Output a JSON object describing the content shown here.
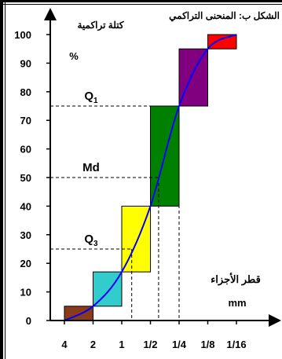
{
  "chart_data": {
    "type": "cumulative_histogram",
    "title": "الشكل ب: المنحنى التراكمي",
    "ylabel": "كتلة تراكمية",
    "ylabel_unit": "%",
    "xlabel": "قطر الأجزاء",
    "xlabel_unit": "mm",
    "ylim": [
      0,
      100
    ],
    "yticks": [
      0,
      10,
      20,
      30,
      40,
      50,
      60,
      70,
      80,
      90,
      100
    ],
    "categories": [
      "4",
      "2",
      "1",
      "1/2",
      "1/4",
      "1/8",
      "1/16"
    ],
    "bars": [
      {
        "from": "4",
        "to": "2",
        "bottom": 0,
        "top": 5,
        "color": "#8B3A1A"
      },
      {
        "from": "2",
        "to": "1",
        "bottom": 5,
        "top": 17,
        "color": "#33CCCC"
      },
      {
        "from": "1",
        "to": "1/2",
        "bottom": 17,
        "top": 40,
        "color": "#FFFF00"
      },
      {
        "from": "1/2",
        "to": "1/4",
        "bottom": 40,
        "top": 75,
        "color": "#008000"
      },
      {
        "from": "1/4",
        "to": "1/8",
        "bottom": 75,
        "top": 95,
        "color": "#800080"
      },
      {
        "from": "1/8",
        "to": "1/16",
        "bottom": 95,
        "top": 100,
        "color": "#FF0000"
      }
    ],
    "curve_color": "#0000FF",
    "curve": [
      [
        0,
        0
      ],
      [
        1,
        5
      ],
      [
        2,
        17
      ],
      [
        3,
        40
      ],
      [
        4,
        75
      ],
      [
        5,
        95
      ],
      [
        6,
        100
      ]
    ],
    "annotations": [
      {
        "label": "Q",
        "sub": "1",
        "y": 75
      },
      {
        "label": "Md",
        "sub": "",
        "y": 50
      },
      {
        "label": "Q",
        "sub": "3",
        "y": 25
      }
    ]
  }
}
